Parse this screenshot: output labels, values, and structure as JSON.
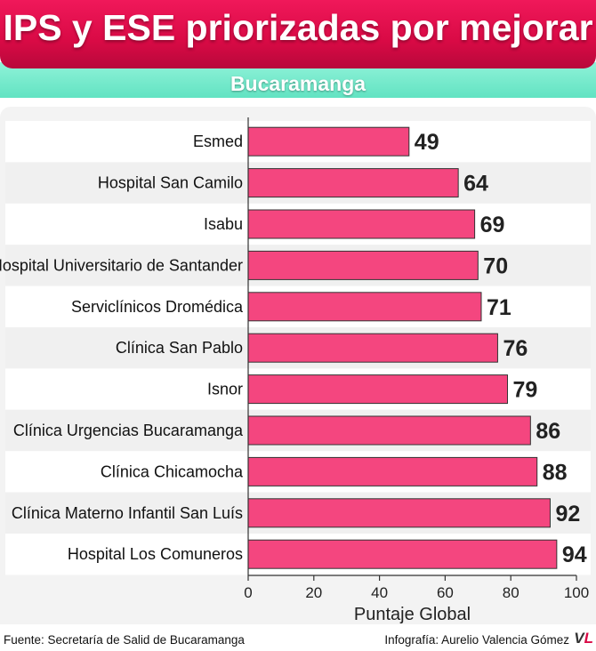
{
  "header": {
    "title": "IPS y ESE priorizadas por mejorar",
    "subtitle": "Bucaramanga"
  },
  "footer": {
    "source": "Fuente: Secretaría de Salid de Bucaramanga",
    "credit": "Infografía: Aurelio Valencia Gómez"
  },
  "colors": {
    "bar": "#f4467f",
    "title_band": "#e0124f",
    "subtitle_band": "#7eecd0"
  },
  "chart_data": {
    "type": "bar",
    "orientation": "horizontal",
    "categories": [
      "Esmed",
      "Hospital San Camilo",
      "Isabu",
      "Hospital Universitario de Santander",
      "Serviclínicos Dromédica",
      "Clínica San Pablo",
      "Isnor",
      "Clínica Urgencias Bucaramanga",
      "Clínica Chicamocha",
      "Clínica Materno Infantil San Luís",
      "Hospital Los Comuneros"
    ],
    "values": [
      49,
      64,
      69,
      70,
      71,
      76,
      79,
      86,
      88,
      92,
      94
    ],
    "xlabel": "Puntaje Global",
    "ylabel": "",
    "xlim": [
      0,
      100
    ],
    "xticks": [
      0,
      20,
      40,
      60,
      80,
      100
    ],
    "grid": false,
    "data_labels": true
  }
}
